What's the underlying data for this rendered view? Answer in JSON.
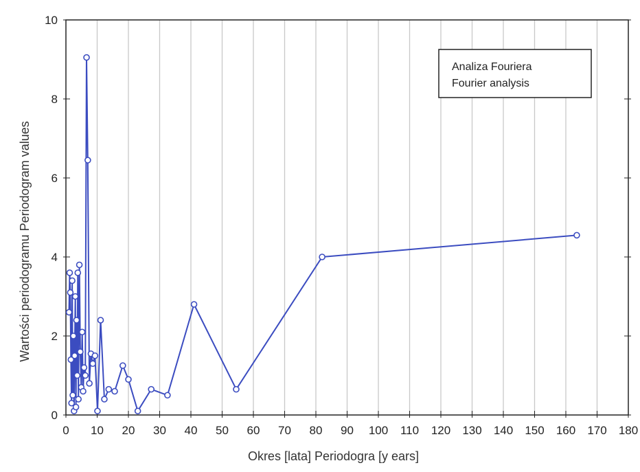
{
  "colors": {
    "series": "#3b4cc0",
    "grid": "#c8c8c8",
    "axis": "#222222"
  },
  "chart_data": {
    "type": "line",
    "title": "",
    "xlabel": "Okres [lata] Periodogra [y ears]",
    "ylabel": "Wartości periodogramu Periodogram values",
    "xlim": [
      0,
      180
    ],
    "ylim": [
      0,
      10
    ],
    "x_ticks": [
      0,
      10,
      20,
      30,
      40,
      50,
      60,
      70,
      80,
      90,
      100,
      110,
      120,
      130,
      140,
      150,
      160,
      170,
      180
    ],
    "y_ticks": [
      0,
      2,
      4,
      6,
      8,
      10
    ],
    "grid": "vertical",
    "legend": {
      "lines": [
        "Analiza Fouriera",
        "Fourier analysis"
      ],
      "placement": "top-right"
    },
    "series": [
      {
        "x": [
          1.0,
          1.2,
          1.4,
          1.6,
          1.8,
          2.0,
          2.2,
          2.4,
          2.6,
          2.8,
          3.0,
          3.2,
          3.4,
          3.6,
          3.8,
          4.0,
          4.3,
          4.6,
          4.9,
          5.2,
          5.5,
          5.8,
          6.2,
          6.6,
          7.0,
          7.5,
          8.0,
          8.6,
          9.3,
          10.1,
          11.1,
          12.3,
          13.7,
          15.6,
          18.2,
          20.0,
          23.0,
          27.3,
          32.5,
          41.0,
          54.5,
          82.0,
          163.5
        ],
        "y": [
          2.6,
          3.6,
          3.1,
          1.4,
          0.3,
          3.4,
          0.5,
          2.0,
          0.1,
          1.5,
          3.0,
          0.2,
          2.4,
          1.0,
          3.6,
          0.4,
          3.8,
          1.6,
          0.7,
          2.1,
          0.6,
          1.2,
          1.0,
          9.05,
          6.45,
          0.8,
          1.55,
          1.3,
          1.5,
          0.1,
          2.4,
          0.4,
          0.65,
          0.6,
          1.25,
          0.9,
          0.1,
          0.65,
          0.5,
          2.8,
          0.65,
          4.0,
          4.55
        ]
      }
    ]
  }
}
